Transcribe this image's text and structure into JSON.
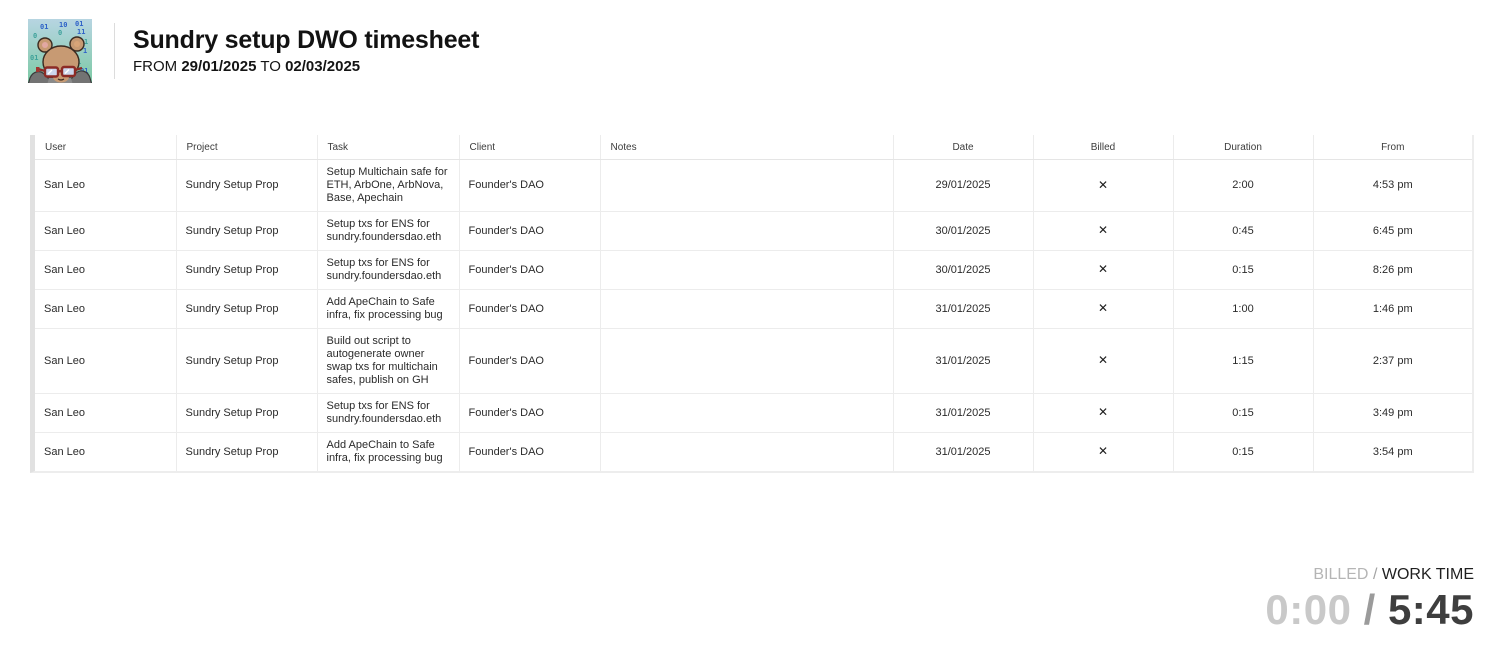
{
  "header": {
    "title": "Sundry setup DWO timesheet",
    "subtitle": {
      "from_label": "FROM",
      "from_date": "29/01/2025",
      "to_label": "TO",
      "to_date": "02/03/2025"
    }
  },
  "logo": {
    "description": "pixel-art bear avatar with red glasses and grey hoodie on teal binary background",
    "bg_top_color": "#b7d5e2",
    "bg_bottom_color": "#7cc9a4",
    "digit_blue": "#2f62c8",
    "digit_teal": "#3fa29b",
    "digits": [
      "01",
      "10",
      "01",
      "11",
      "0",
      "0",
      "1",
      "1",
      "01",
      "1",
      "01",
      "0"
    ]
  },
  "table": {
    "columns": [
      {
        "key": "user",
        "label": "User",
        "align": "left"
      },
      {
        "key": "project",
        "label": "Project",
        "align": "left"
      },
      {
        "key": "task",
        "label": "Task",
        "align": "left"
      },
      {
        "key": "client",
        "label": "Client",
        "align": "left"
      },
      {
        "key": "notes",
        "label": "Notes",
        "align": "left"
      },
      {
        "key": "date",
        "label": "Date",
        "align": "center"
      },
      {
        "key": "billed",
        "label": "Billed",
        "align": "center"
      },
      {
        "key": "duration",
        "label": "Duration",
        "align": "center"
      },
      {
        "key": "from",
        "label": "From",
        "align": "center"
      }
    ],
    "rows": [
      {
        "user": "San Leo",
        "project": "Sundry Setup Prop",
        "task": "Setup Multichain safe for ETH, ArbOne, ArbNova, Base, Apechain",
        "client": "Founder's DAO",
        "notes": "",
        "date": "29/01/2025",
        "billed": "✕",
        "duration": "2:00",
        "from": "4:53 pm"
      },
      {
        "user": "San Leo",
        "project": "Sundry Setup Prop",
        "task": "Setup txs for ENS for sundry.foundersdao.eth",
        "client": "Founder's DAO",
        "notes": "",
        "date": "30/01/2025",
        "billed": "✕",
        "duration": "0:45",
        "from": "6:45 pm"
      },
      {
        "user": "San Leo",
        "project": "Sundry Setup Prop",
        "task": "Setup txs for ENS for sundry.foundersdao.eth",
        "client": "Founder's DAO",
        "notes": "",
        "date": "30/01/2025",
        "billed": "✕",
        "duration": "0:15",
        "from": "8:26 pm"
      },
      {
        "user": "San Leo",
        "project": "Sundry Setup Prop",
        "task": "Add ApeChain to Safe infra, fix processing bug",
        "client": "Founder's DAO",
        "notes": "",
        "date": "31/01/2025",
        "billed": "✕",
        "duration": "1:00",
        "from": "1:46 pm"
      },
      {
        "user": "San Leo",
        "project": "Sundry Setup Prop",
        "task": "Build out script to autogenerate owner swap txs for multichain safes, publish on GH",
        "client": "Founder's DAO",
        "notes": "",
        "date": "31/01/2025",
        "billed": "✕",
        "duration": "1:15",
        "from": "2:37 pm"
      },
      {
        "user": "San Leo",
        "project": "Sundry Setup Prop",
        "task": "Setup txs for ENS for sundry.foundersdao.eth",
        "client": "Founder's DAO",
        "notes": "",
        "date": "31/01/2025",
        "billed": "✕",
        "duration": "0:15",
        "from": "3:49 pm"
      },
      {
        "user": "San Leo",
        "project": "Sundry Setup Prop",
        "task": "Add ApeChain to Safe infra, fix processing bug",
        "client": "Founder's DAO",
        "notes": "",
        "date": "31/01/2025",
        "billed": "✕",
        "duration": "0:15",
        "from": "3:54 pm"
      }
    ]
  },
  "summary": {
    "billed_label": "BILLED",
    "slash": "/",
    "work_time_label": "WORK TIME",
    "billed_value": "0:00",
    "work_time_value": "5:45"
  }
}
